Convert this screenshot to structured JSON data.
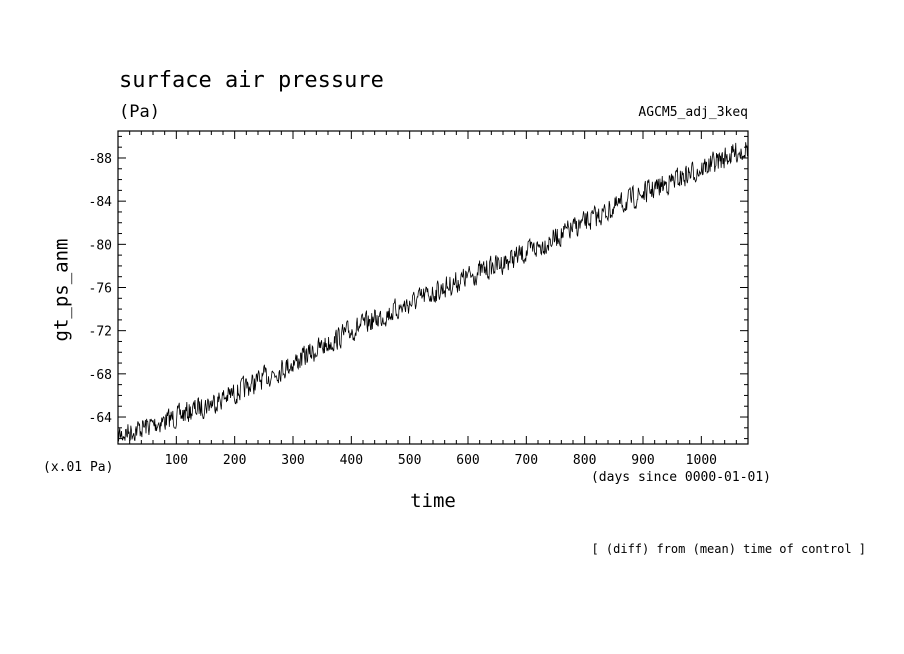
{
  "chart_data": {
    "type": "line",
    "title": "surface air pressure",
    "units": "(Pa)",
    "run_label": "AGCM5_adj_3keq",
    "xlabel": "time",
    "x_units": "(days since 0000-01-01)",
    "ylabel": "gt_ps_anm",
    "y_scale_note": "(x.01 Pa)",
    "note": "[ (diff) from (mean) time of control ]",
    "xlim": [
      0,
      1080
    ],
    "ylim": [
      -61.5,
      -90.5
    ],
    "x_ticks": [
      "100",
      "200",
      "300",
      "400",
      "500",
      "600",
      "700",
      "800",
      "900",
      "1000"
    ],
    "y_ticks": [
      "-64",
      "-68",
      "-72",
      "-76",
      "-80",
      "-84",
      "-88"
    ],
    "grid": false,
    "legend": "none",
    "line_color": "#000000",
    "trend": [
      {
        "x": 0,
        "y": -62.3
      },
      {
        "x": 100,
        "y": -64.0
      },
      {
        "x": 200,
        "y": -66.2
      },
      {
        "x": 300,
        "y": -69.0
      },
      {
        "x": 400,
        "y": -72.0
      },
      {
        "x": 500,
        "y": -74.5
      },
      {
        "x": 600,
        "y": -77.0
      },
      {
        "x": 700,
        "y": -79.2
      },
      {
        "x": 800,
        "y": -82.0
      },
      {
        "x": 900,
        "y": -84.7
      },
      {
        "x": 1000,
        "y": -87.0
      },
      {
        "x": 1080,
        "y": -89.0
      }
    ],
    "noise_amplitude": 1.2
  }
}
